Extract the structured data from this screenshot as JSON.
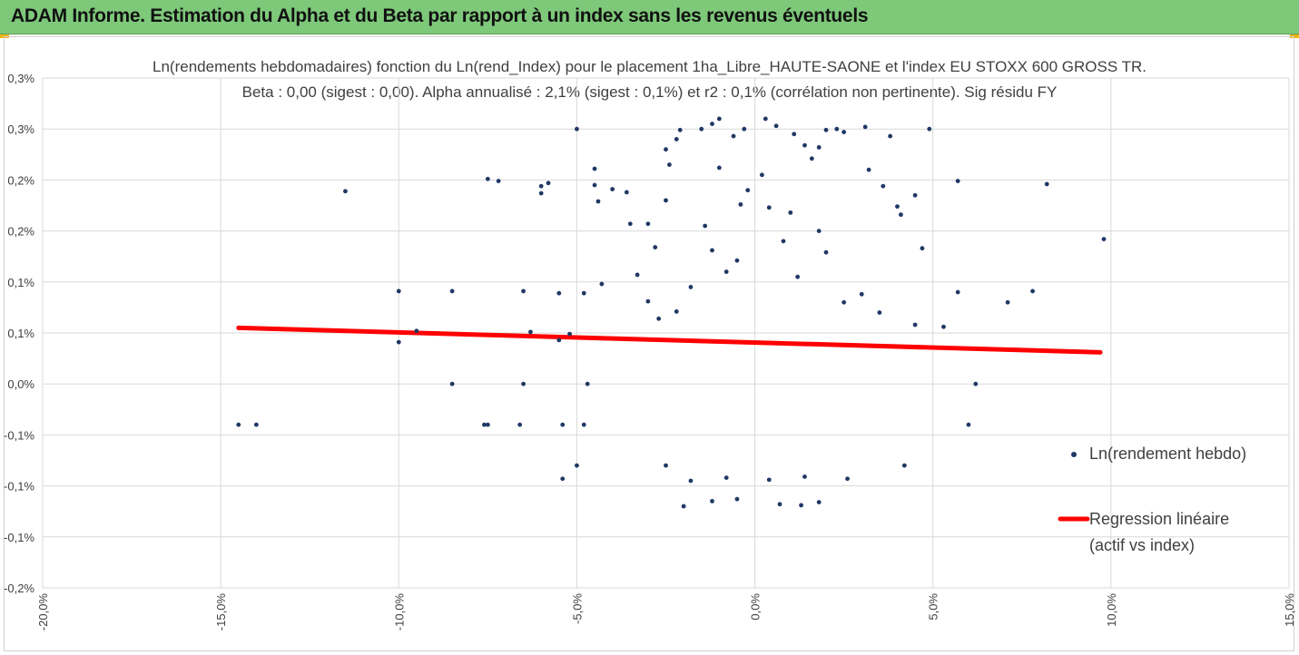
{
  "header": {
    "title": "ADAM Informe. Estimation du Alpha et du Beta par rapport à un index sans les revenus éventuels",
    "accent": "#7ec87a",
    "corner_color": "#f2b40e"
  },
  "chart_data": {
    "type": "scatter",
    "title": "Ln(rendements hebdomadaires) fonction du Ln(rend_Index) pour le placement 1ha_Libre_HAUTE-SAONE et l'index EU STOXX 600 GROSS TR.",
    "subtitle": "Beta : 0,00 (sigest : 0,00). Alpha annualisé : 2,1% (sigest : 0,1%) et r2 : 0,1% (corrélation non pertinente). Sig résidu FY",
    "xlabel": "",
    "ylabel": "",
    "xlim": [
      -0.2,
      0.15
    ],
    "ylim": [
      -0.002,
      0.003
    ],
    "x_ticks": [
      -0.2,
      -0.15,
      -0.1,
      -0.05,
      0.0,
      0.05,
      0.1,
      0.15
    ],
    "x_tick_labels": [
      "-20,0%",
      "-15,0%",
      "-10,0%",
      "-5,0%",
      "0,0%",
      "5,0%",
      "10,0%",
      "15,0%"
    ],
    "y_ticks": [
      -0.002,
      -0.0015,
      -0.001,
      -0.0005,
      0.0,
      0.0005,
      0.001,
      0.0015,
      0.002,
      0.0025,
      0.003
    ],
    "y_tick_labels": [
      "-0,2%",
      "-0,1%",
      "-0,1%",
      "-0,1%",
      "0,0%",
      "0,1%",
      "0,1%",
      "0,2%",
      "0,2%",
      "0,3%",
      "0,3%"
    ],
    "grid": true,
    "legend_position": "right",
    "series": [
      {
        "name": "Ln(rendement hebdo)",
        "kind": "scatter",
        "color": "#1f3864",
        "points": [
          [
            -0.145,
            -0.0004
          ],
          [
            -0.14,
            -0.0004
          ],
          [
            -0.115,
            0.00189
          ],
          [
            -0.1,
            0.00091
          ],
          [
            -0.1,
            0.00041
          ],
          [
            -0.095,
            0.00052
          ],
          [
            -0.085,
            0.00091
          ],
          [
            -0.085,
            0.0
          ],
          [
            -0.075,
            0.00201
          ],
          [
            -0.072,
            0.00199
          ],
          [
            -0.076,
            -0.0004
          ],
          [
            -0.075,
            -0.0004
          ],
          [
            -0.065,
            0.00091
          ],
          [
            -0.065,
            0.0
          ],
          [
            -0.066,
            -0.0004
          ],
          [
            -0.063,
            0.00051
          ],
          [
            -0.06,
            0.00194
          ],
          [
            -0.06,
            0.00187
          ],
          [
            -0.058,
            0.00197
          ],
          [
            -0.055,
            0.00089
          ],
          [
            -0.055,
            0.00043
          ],
          [
            -0.054,
            -0.0004
          ],
          [
            -0.054,
            -0.00093
          ],
          [
            -0.052,
            0.00049
          ],
          [
            -0.05,
            0.0025
          ],
          [
            -0.05,
            -0.0008
          ],
          [
            -0.048,
            0.00089
          ],
          [
            -0.047,
            0.0
          ],
          [
            -0.048,
            -0.0004
          ],
          [
            -0.044,
            0.00179
          ],
          [
            -0.045,
            0.00211
          ],
          [
            -0.045,
            0.00195
          ],
          [
            -0.043,
            0.00098
          ],
          [
            -0.04,
            0.00191
          ],
          [
            -0.036,
            0.00188
          ],
          [
            -0.035,
            0.00157
          ],
          [
            -0.033,
            0.00107
          ],
          [
            -0.03,
            0.00157
          ],
          [
            -0.028,
            0.00134
          ],
          [
            -0.027,
            0.00064
          ],
          [
            -0.025,
            0.0023
          ],
          [
            -0.025,
            0.0018
          ],
          [
            -0.024,
            0.00215
          ],
          [
            -0.022,
            0.0024
          ],
          [
            -0.021,
            0.00249
          ],
          [
            -0.015,
            0.0025
          ],
          [
            -0.012,
            0.00255
          ],
          [
            -0.01,
            0.0026
          ],
          [
            -0.006,
            0.00243
          ],
          [
            -0.003,
            0.0025
          ],
          [
            0.003,
            0.0026
          ],
          [
            0.006,
            0.00253
          ],
          [
            0.011,
            0.00245
          ],
          [
            0.014,
            0.00234
          ],
          [
            0.018,
            0.00232
          ],
          [
            0.02,
            0.00249
          ],
          [
            0.023,
            0.0025
          ],
          [
            0.025,
            0.00247
          ],
          [
            0.031,
            0.00252
          ],
          [
            0.038,
            0.00243
          ],
          [
            0.032,
            0.0021
          ],
          [
            0.036,
            0.00194
          ],
          [
            0.04,
            0.00174
          ],
          [
            0.041,
            0.00166
          ],
          [
            0.045,
            0.00185
          ],
          [
            0.047,
            0.00133
          ],
          [
            0.049,
            0.0025
          ],
          [
            0.057,
            0.00199
          ],
          [
            0.057,
            0.0009
          ],
          [
            0.071,
            0.0008
          ],
          [
            0.078,
            0.00091
          ],
          [
            0.082,
            0.00196
          ],
          [
            0.098,
            0.00142
          ],
          [
            0.06,
            -0.0004
          ],
          [
            0.062,
            0.0
          ],
          [
            0.042,
            -0.0008
          ],
          [
            0.053,
            0.00056
          ],
          [
            0.045,
            0.00058
          ],
          [
            -0.005,
            0.00121
          ],
          [
            0.004,
            0.00173
          ],
          [
            -0.008,
            0.0011
          ],
          [
            0.012,
            0.00105
          ],
          [
            0.02,
            0.00129
          ],
          [
            -0.018,
            0.00095
          ],
          [
            0.03,
            0.00088
          ],
          [
            -0.03,
            0.00081
          ],
          [
            0.025,
            0.0008
          ],
          [
            -0.022,
            0.00071
          ],
          [
            0.035,
            0.0007
          ],
          [
            -0.012,
            0.00131
          ],
          [
            0.008,
            0.0014
          ],
          [
            -0.002,
            0.0019
          ],
          [
            0.002,
            0.00205
          ],
          [
            -0.01,
            0.00212
          ],
          [
            0.016,
            0.00221
          ],
          [
            -0.004,
            0.00176
          ],
          [
            0.01,
            0.00168
          ],
          [
            -0.014,
            0.00155
          ],
          [
            0.018,
            0.0015
          ],
          [
            -0.02,
            -0.0012
          ],
          [
            -0.012,
            -0.00115
          ],
          [
            -0.005,
            -0.00113
          ],
          [
            0.007,
            -0.00118
          ],
          [
            0.013,
            -0.00119
          ],
          [
            0.018,
            -0.00116
          ],
          [
            -0.025,
            -0.0008
          ],
          [
            -0.018,
            -0.00095
          ],
          [
            -0.008,
            -0.00092
          ],
          [
            0.004,
            -0.00094
          ],
          [
            0.014,
            -0.00091
          ],
          [
            0.026,
            -0.00093
          ]
        ]
      },
      {
        "name": "Regression linéaire (actif vs index)",
        "kind": "line",
        "color": "#ff0000",
        "points": [
          [
            -0.145,
            0.00055
          ],
          [
            0.097,
            0.00031
          ]
        ]
      }
    ]
  },
  "legend": {
    "scatter_label": "Ln(rendement hebdo)",
    "line_label_1": "Regression linéaire",
    "line_label_2": "(actif vs index)"
  }
}
